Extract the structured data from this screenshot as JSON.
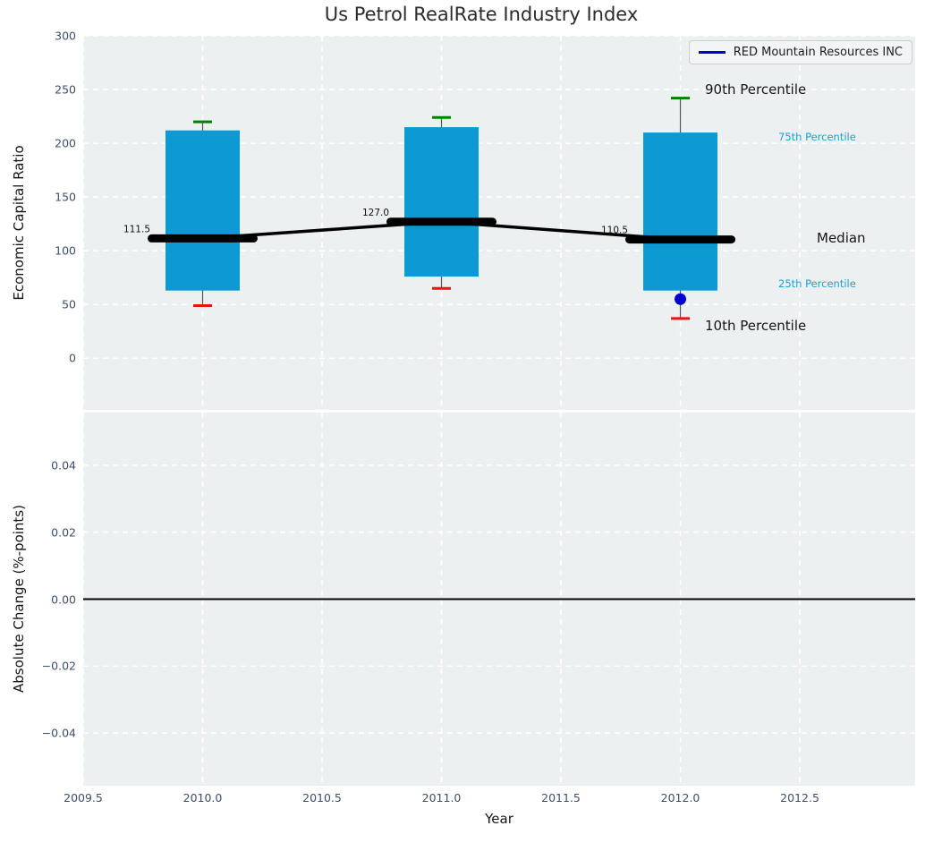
{
  "title": "Us Petrol RealRate Industry Index",
  "legend": {
    "label": "RED Mountain Resources INC"
  },
  "axes": {
    "top": {
      "ylabel": "Economic Capital Ratio"
    },
    "bottom": {
      "ylabel": "Absolute Change (%-points)",
      "xlabel": "Year"
    }
  },
  "colors": {
    "box": "#0d9ad2",
    "p90_cap": "#008000",
    "p10_cap": "#ee1111",
    "median_line": "#000000",
    "whisker": "#555555",
    "company": "#0000cc",
    "plot_bg": "#ecf0f1",
    "grid": "#ffffff",
    "tick_label": "#3f4e6b",
    "percentile_label_blue": "#1b9fd8",
    "percentile_label_black": "#161616",
    "zero_line": "#000000"
  },
  "chart_data": [
    {
      "type": "box",
      "title": "Us Petrol RealRate Industry Index",
      "ylabel": "Economic Capital Ratio",
      "xlabel": "Year",
      "grid": "white dashed on",
      "legend_position": "upper right",
      "xlim": [
        2009.5,
        2012.983
      ],
      "ylim": [
        -48,
        300
      ],
      "xticks": [
        2009.5,
        2010.0,
        2010.5,
        2011.0,
        2011.5,
        2012.0,
        2012.5
      ],
      "yticks": [
        300,
        250,
        200,
        150,
        100,
        50,
        0
      ],
      "years": [
        2010,
        2011,
        2012
      ],
      "series": [
        {
          "name": "90th Percentile",
          "values": [
            220,
            224,
            242
          ]
        },
        {
          "name": "75th Percentile",
          "values": [
            212,
            215,
            210
          ]
        },
        {
          "name": "Median",
          "values": [
            111.5,
            127.0,
            110.5
          ]
        },
        {
          "name": "25th Percentile",
          "values": [
            63,
            76,
            63
          ]
        },
        {
          "name": "10th Percentile",
          "values": [
            49,
            65,
            37
          ]
        }
      ],
      "median_annotations": [
        "111.5",
        "127.0",
        "110.5"
      ],
      "company_series": {
        "name": "RED Mountain Resources INC",
        "points": [
          {
            "x": 2012,
            "y": 55
          }
        ]
      },
      "percentile_labels": [
        "90th Percentile",
        "75th Percentile",
        "Median",
        "25th Percentile",
        "10th Percentile"
      ]
    },
    {
      "type": "line",
      "ylabel": "Absolute Change (%-points)",
      "xlabel": "Year",
      "grid": "white dashed on",
      "xlim": [
        2009.5,
        2012.983
      ],
      "ylim": [
        -0.0557,
        0.0557
      ],
      "xticks": [
        2009.5,
        2010.0,
        2010.5,
        2011.0,
        2011.5,
        2012.0,
        2012.5
      ],
      "yticks": [
        0.04,
        0.02,
        0.0,
        -0.02,
        -0.04
      ],
      "zero_line_y": 0.0,
      "series": []
    }
  ]
}
